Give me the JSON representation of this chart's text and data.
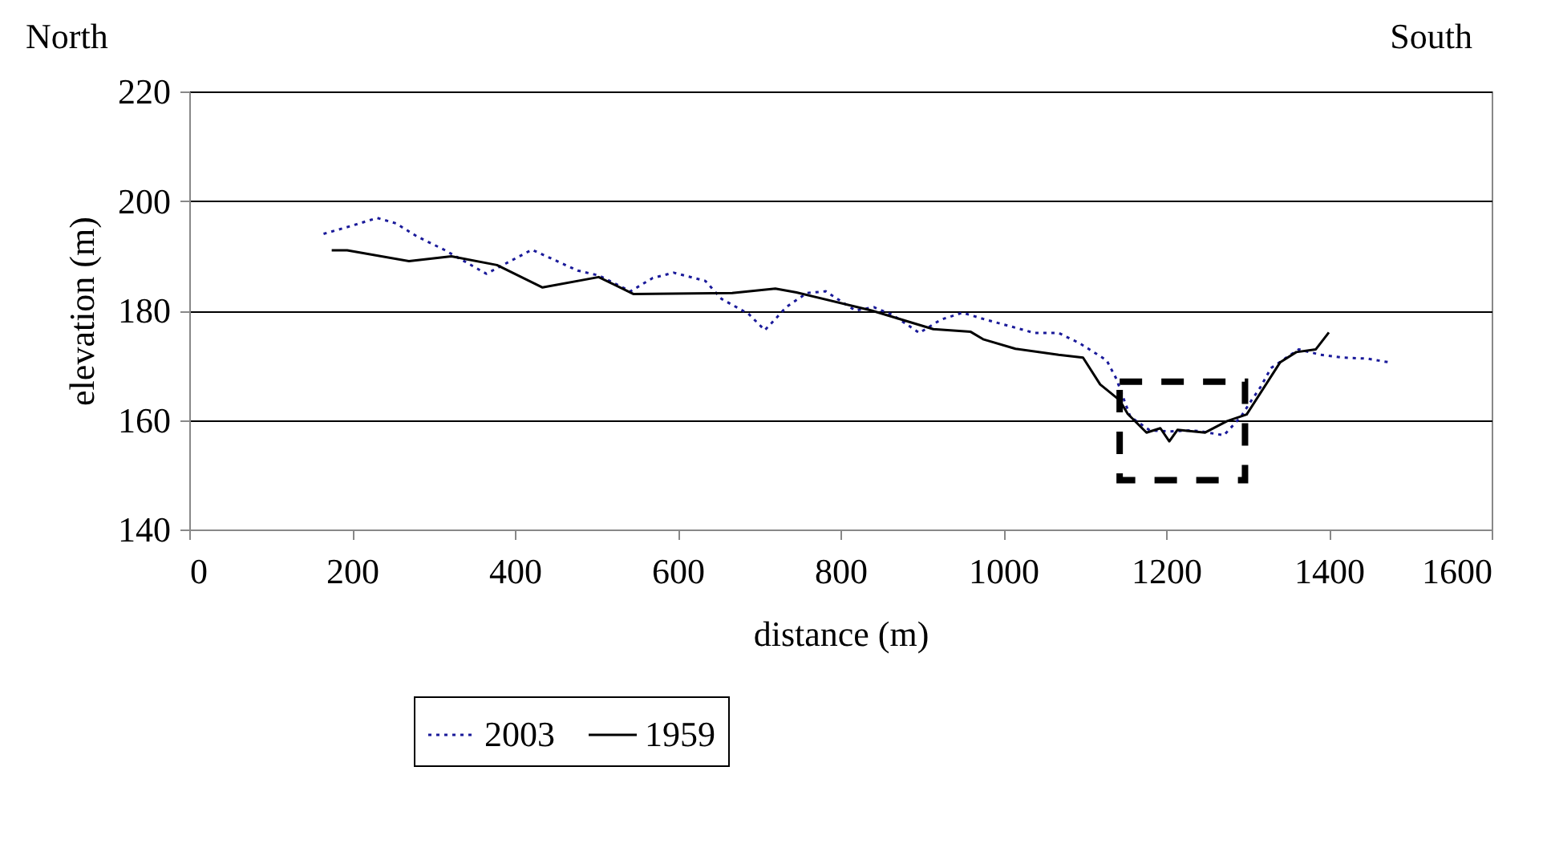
{
  "chart_data": {
    "type": "line",
    "xlabel": "distance (m)",
    "ylabel": "elevation (m)",
    "annotations": [
      "North",
      "South"
    ],
    "xlim": [
      0,
      1600
    ],
    "xticks": [
      0,
      200,
      400,
      600,
      800,
      1000,
      1200,
      1400,
      1600
    ],
    "ylim": [
      140,
      220
    ],
    "yticks": [
      140,
      160,
      180,
      200,
      220
    ],
    "grid": "y",
    "legend": "bottom",
    "series": [
      {
        "name": "2003",
        "color": "#1a1a9a",
        "line_style": "dotted",
        "x": [
          165,
          198,
          231,
          254,
          280,
          313,
          365,
          421,
          477,
          503,
          542,
          569,
          595,
          634,
          654,
          687,
          707,
          716,
          734,
          759,
          782,
          818,
          841,
          864,
          897,
          923,
          950,
          979,
          1009,
          1038,
          1068,
          1094,
          1127,
          1139,
          1156,
          1180,
          1204,
          1230,
          1244,
          1271,
          1292,
          1305,
          1316,
          1329,
          1363,
          1390,
          1417,
          1448,
          1475
        ],
        "values": [
          194,
          195.4,
          196.9,
          195.9,
          193.5,
          191.1,
          186.7,
          191.1,
          187.3,
          186.4,
          183.5,
          185.9,
          186.9,
          185.4,
          182.1,
          179.4,
          176.4,
          177.8,
          180.7,
          183.2,
          183.5,
          180,
          180.6,
          179.2,
          175.9,
          178.3,
          179.6,
          178.3,
          177.1,
          175.9,
          175.9,
          174,
          170.9,
          167.5,
          160.6,
          158.1,
          157.9,
          158.1,
          157.9,
          157.2,
          160.6,
          163.6,
          166,
          169.5,
          172.9,
          171.9,
          171.4,
          171.2,
          170.5
        ]
      },
      {
        "name": "1959",
        "color": "#000000",
        "line_style": "solid",
        "x": [
          175,
          194,
          270,
          322,
          378,
          434,
          503,
          546,
          667,
          720,
          746,
          838,
          914,
          960,
          976,
          1015,
          1068,
          1098,
          1119,
          1143,
          1153,
          1176,
          1193,
          1204,
          1214,
          1248,
          1275,
          1299,
          1340,
          1360,
          1384,
          1400
        ],
        "values": [
          191,
          191,
          189,
          189.9,
          188.3,
          184.2,
          186.1,
          183,
          183.2,
          184,
          183.3,
          180,
          176.6,
          176.1,
          174.7,
          173,
          171.9,
          171.4,
          166.5,
          163.6,
          161.1,
          157.7,
          158.5,
          156.1,
          158.2,
          157.7,
          159.8,
          161,
          170.5,
          172.4,
          172.9,
          176
        ]
      }
    ]
  }
}
